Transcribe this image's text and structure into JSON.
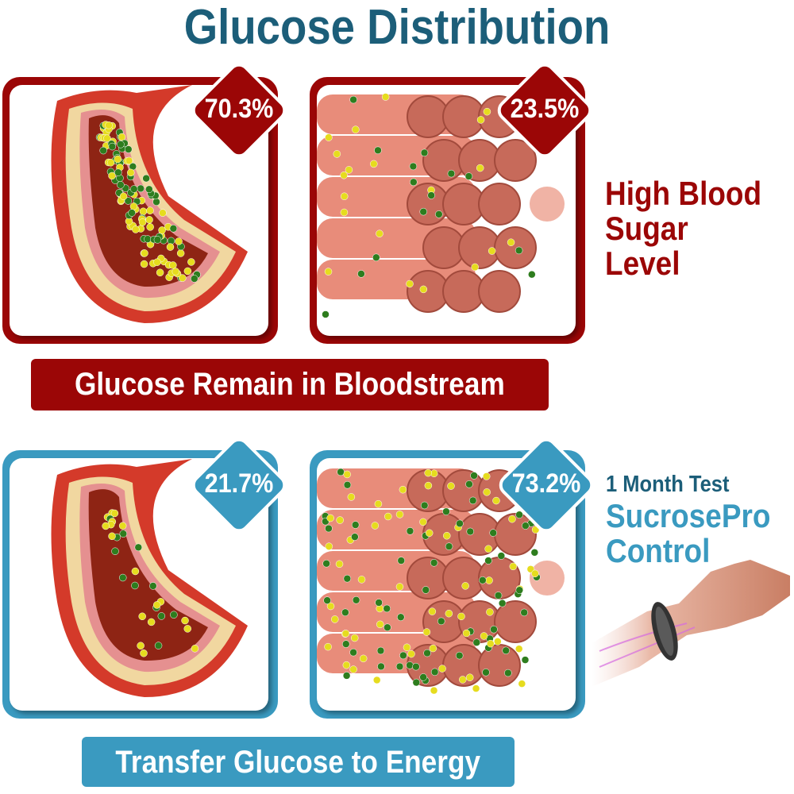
{
  "title": "Glucose Distribution",
  "colors": {
    "title": "#1c5e79",
    "red": "#9b0606",
    "blue": "#3a9ac0",
    "glucose_yellow": "#e6dc1e",
    "green": "#2e7d1e"
  },
  "high": {
    "vessel_percent": "70.3%",
    "muscle_percent": "23.5%",
    "label_line1": "High Blood",
    "label_line2": "Sugar Level",
    "banner": "Glucose Remain in Bloodstream"
  },
  "control": {
    "vessel_percent": "21.7%",
    "muscle_percent": "73.2%",
    "label_small": "1 Month Test",
    "label_line1": "SucrosePro",
    "label_line2": "Control",
    "banner": "Transfer Glucose to Energy"
  }
}
